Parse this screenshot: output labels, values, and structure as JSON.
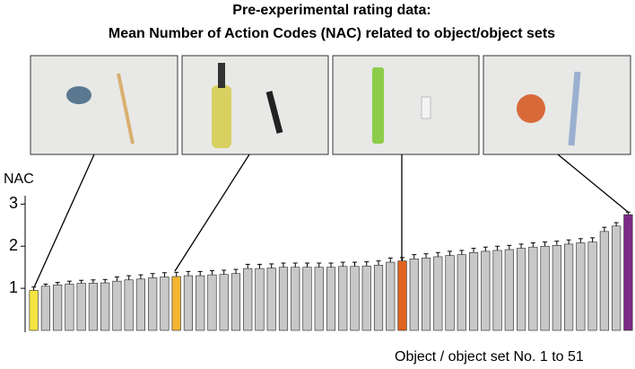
{
  "chart_data": {
    "type": "bar",
    "title": "Pre-experimental rating data:",
    "subtitle": "Mean Number of Action Codes (NAC) related to object/object sets",
    "y_label": "NAC",
    "x_label": "Object / object set No. 1 to 51",
    "values": [
      0.95,
      1.05,
      1.08,
      1.1,
      1.12,
      1.12,
      1.13,
      1.17,
      1.2,
      1.22,
      1.25,
      1.27,
      1.28,
      1.3,
      1.3,
      1.32,
      1.33,
      1.35,
      1.47,
      1.47,
      1.48,
      1.5,
      1.5,
      1.5,
      1.5,
      1.5,
      1.52,
      1.52,
      1.53,
      1.55,
      1.62,
      1.65,
      1.7,
      1.72,
      1.75,
      1.78,
      1.8,
      1.85,
      1.88,
      1.9,
      1.92,
      1.95,
      1.98,
      2.0,
      2.02,
      2.05,
      2.08,
      2.1,
      2.35,
      2.48,
      2.75
    ],
    "errors": [
      0.08,
      0.05,
      0.06,
      0.07,
      0.07,
      0.08,
      0.08,
      0.1,
      0.1,
      0.1,
      0.1,
      0.1,
      0.1,
      0.1,
      0.1,
      0.1,
      0.1,
      0.1,
      0.1,
      0.1,
      0.1,
      0.1,
      0.1,
      0.1,
      0.1,
      0.1,
      0.1,
      0.1,
      0.1,
      0.1,
      0.1,
      0.08,
      0.1,
      0.1,
      0.1,
      0.1,
      0.1,
      0.1,
      0.1,
      0.1,
      0.1,
      0.1,
      0.1,
      0.1,
      0.1,
      0.1,
      0.1,
      0.1,
      0.1,
      0.08,
      0.06
    ],
    "colors": [
      "#f4e542",
      "#c8c8c8",
      "#c8c8c8",
      "#c8c8c8",
      "#c8c8c8",
      "#c8c8c8",
      "#c8c8c8",
      "#c8c8c8",
      "#c8c8c8",
      "#c8c8c8",
      "#c8c8c8",
      "#c8c8c8",
      "#f2b534",
      "#c8c8c8",
      "#c8c8c8",
      "#c8c8c8",
      "#c8c8c8",
      "#c8c8c8",
      "#c8c8c8",
      "#c8c8c8",
      "#c8c8c8",
      "#c8c8c8",
      "#c8c8c8",
      "#c8c8c8",
      "#c8c8c8",
      "#c8c8c8",
      "#c8c8c8",
      "#c8c8c8",
      "#c8c8c8",
      "#c8c8c8",
      "#c8c8c8",
      "#e0641e",
      "#c8c8c8",
      "#c8c8c8",
      "#c8c8c8",
      "#c8c8c8",
      "#c8c8c8",
      "#c8c8c8",
      "#c8c8c8",
      "#c8c8c8",
      "#c8c8c8",
      "#c8c8c8",
      "#c8c8c8",
      "#c8c8c8",
      "#c8c8c8",
      "#c8c8c8",
      "#c8c8c8",
      "#c8c8c8",
      "#c8c8c8",
      "#c8c8c8",
      "#7b2a85"
    ],
    "ylim": [
      0,
      3.2
    ],
    "yticks": [
      1,
      2,
      3
    ]
  }
}
